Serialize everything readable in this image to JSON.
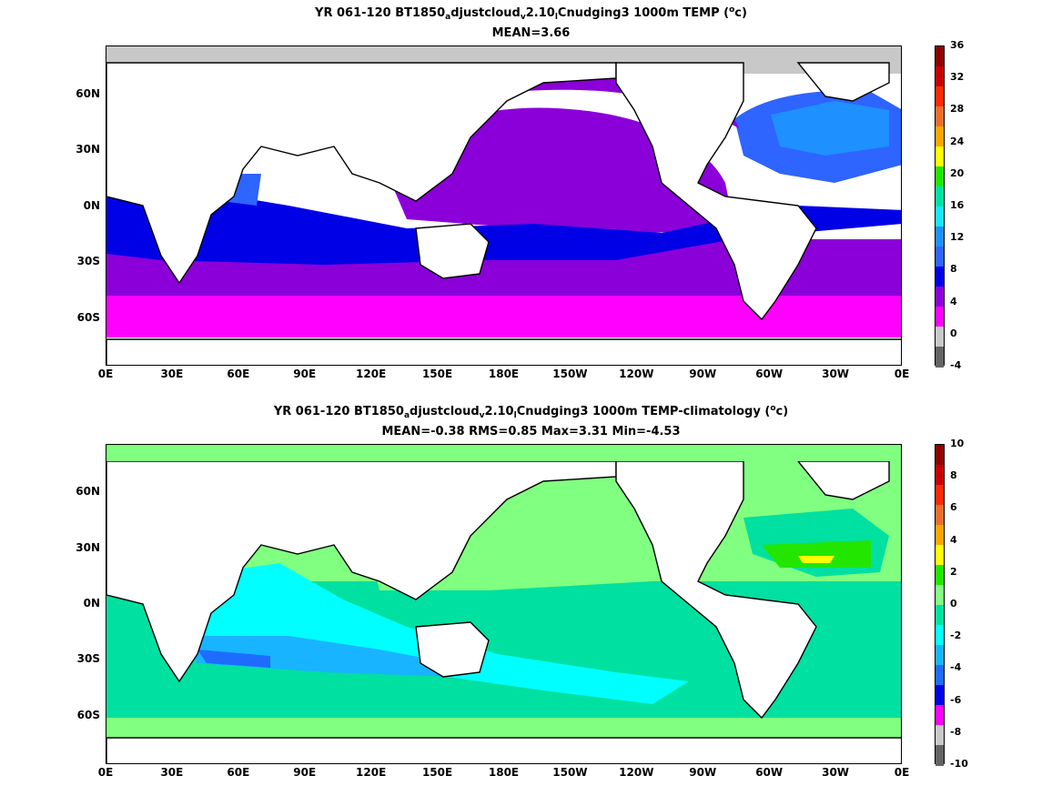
{
  "panels": [
    {
      "title_parts": [
        "YR 061-120 BT1850",
        "a",
        "djustcloud",
        "v",
        "2.10",
        "l",
        "Cnudging3 1000m TEMP (",
        "o",
        "c)"
      ],
      "stats": "MEAN=3.66",
      "colorbar_labels": [
        "36",
        "32",
        "28",
        "24",
        "20",
        "16",
        "12",
        "8",
        "4",
        "0",
        "-4"
      ],
      "colorbar_colors": [
        "#8b0000",
        "#c40000",
        "#ff2a00",
        "#e86f2d",
        "#ffa500",
        "#ffff00",
        "#22e600",
        "#00e0a0",
        "#19e6ff",
        "#1e90ff",
        "#2e64ff",
        "#0000e6",
        "#8b00d9",
        "#ff00ff",
        "#c8c8c8",
        "#646464"
      ]
    },
    {
      "title_parts": [
        "YR 061-120 BT1850",
        "a",
        "djustcloud",
        "v",
        "2.10",
        "l",
        "Cnudging3 1000m TEMP-climatology (",
        "o",
        "c)"
      ],
      "stats": "MEAN=-0.38   RMS=0.85   Max=3.31   Min=-4.53",
      "colorbar_labels": [
        "10",
        "8",
        "6",
        "4",
        "2",
        "0",
        "-2",
        "-4",
        "-6",
        "-8",
        "-10"
      ],
      "colorbar_colors": [
        "#8b0000",
        "#c40000",
        "#ff2a00",
        "#e86f2d",
        "#ffa500",
        "#ffff00",
        "#22e600",
        "#80ff80",
        "#00e0a0",
        "#00ffff",
        "#19b4ff",
        "#1e6cff",
        "#0000e6",
        "#ff00ff",
        "#c8c8c8",
        "#646464"
      ]
    }
  ],
  "x_ticks": [
    "0E",
    "30E",
    "60E",
    "90E",
    "120E",
    "150E",
    "180E",
    "150W",
    "120W",
    "90W",
    "60W",
    "30W",
    "0E"
  ],
  "y_ticks": [
    "60N",
    "30N",
    "0N",
    "30S",
    "60S"
  ]
}
